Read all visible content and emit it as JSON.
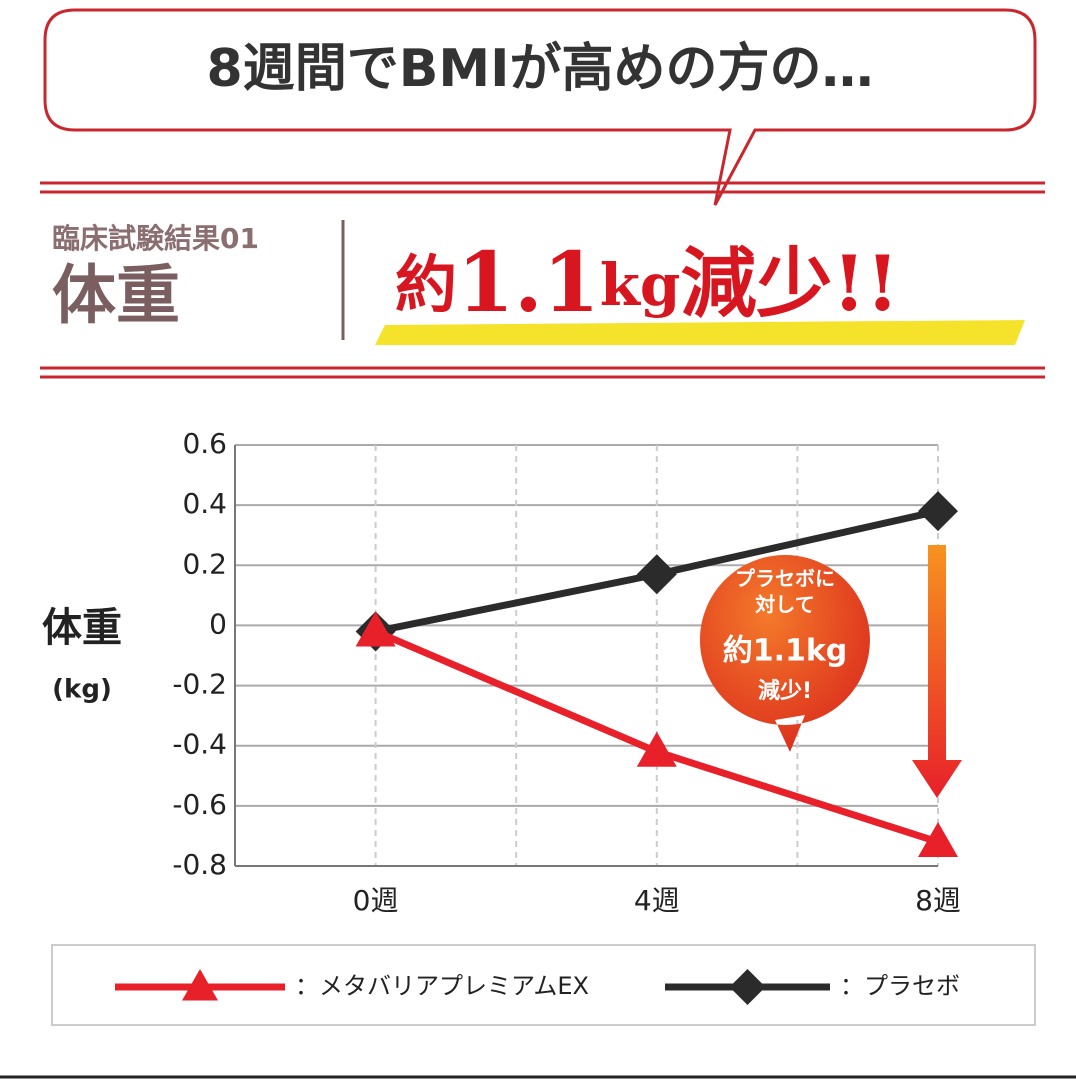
{
  "header": {
    "bubble": "8週間でBMIが高めの方の…",
    "label": "臨床試験結果01",
    "subject": "体重",
    "headline": {
      "prefix": "約",
      "number": "1.1",
      "unit": "kg",
      "suffix": "減少!!"
    }
  },
  "chart_data": {
    "type": "line",
    "ylabel": [
      "体重",
      "(kg)"
    ],
    "x": [
      0,
      4,
      8
    ],
    "xlim": [
      -2,
      8
    ],
    "xticks": [
      {
        "value": 0,
        "label": "0週"
      },
      {
        "value": 4,
        "label": "4週"
      },
      {
        "value": 8,
        "label": "8週"
      }
    ],
    "minor_xticks": [
      2,
      6
    ],
    "ylim": [
      -0.8,
      0.6
    ],
    "yticks": [
      -0.8,
      -0.6,
      -0.4,
      -0.2,
      0,
      0.2,
      0.4,
      0.6
    ],
    "grid": true,
    "series": [
      {
        "name": "：メタバリアプレミアムEX",
        "color": "#e8202a",
        "marker": "triangle",
        "values": [
          -0.02,
          -0.42,
          -0.72
        ]
      },
      {
        "name": "：プラセボ",
        "color": "#2b2b2b",
        "marker": "diamond",
        "values": [
          -0.02,
          0.17,
          0.38
        ]
      }
    ],
    "callout": [
      "プラセボに",
      "対して",
      "約1.1kg",
      "減少!"
    ]
  }
}
